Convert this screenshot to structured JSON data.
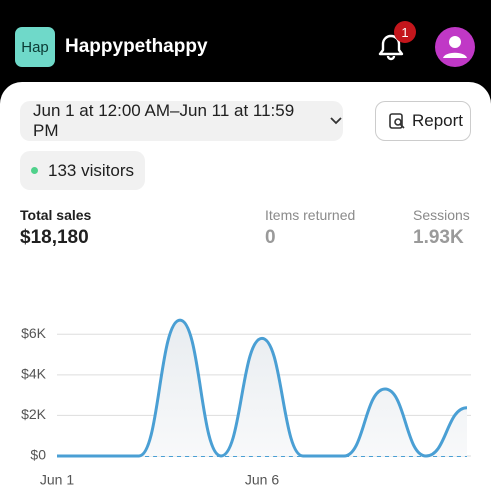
{
  "header": {
    "store_logo": "Hap",
    "store_name": "Happypethappy",
    "notification_count": "1"
  },
  "filters": {
    "date_range": "Jun 1 at 12:00 AM–Jun 11 at 11:59 PM",
    "report_button": "Report",
    "visitors": "133 visitors"
  },
  "metrics": [
    {
      "label": "Total sales",
      "value": "$18,180"
    },
    {
      "label": "Items returned",
      "value": "0"
    },
    {
      "label": "Sessions",
      "value": "1.93K"
    }
  ],
  "chart_data": {
    "type": "line",
    "categories": [
      "Jun 1",
      null,
      null,
      null,
      null,
      "Jun 6",
      null,
      null,
      null,
      null,
      null
    ],
    "series": [
      {
        "color": "#4a9fd4",
        "values": [
          0,
          0,
          0,
          6700,
          0,
          5800,
          0,
          0,
          3300,
          0,
          2380
        ]
      },
      {
        "color": "#4a9fd4",
        "dashed": true,
        "values": [
          0,
          0,
          0,
          0,
          0,
          0,
          0,
          0,
          0,
          0,
          0
        ]
      }
    ],
    "ylim": [
      0,
      7000
    ],
    "yticks": [
      {
        "value": 0,
        "label": "$0"
      },
      {
        "value": 2000,
        "label": "$2K"
      },
      {
        "value": 4000,
        "label": "$4K"
      },
      {
        "value": 6000,
        "label": "$6K"
      }
    ],
    "grid": true
  }
}
